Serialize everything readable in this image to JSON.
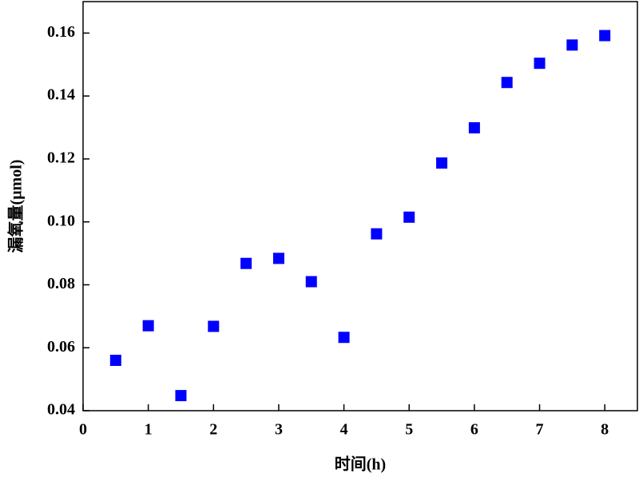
{
  "chart_data": {
    "type": "scatter",
    "x_label": "时间(h)",
    "y_label": "漏氧量(μmol)",
    "x": [
      0.5,
      1,
      1.5,
      2,
      2.5,
      3,
      3.5,
      4,
      4.5,
      5,
      5.5,
      6,
      6.5,
      7,
      7.5,
      8
    ],
    "values": [
      0.056,
      0.067,
      0.0448,
      0.0668,
      0.0868,
      0.0884,
      0.081,
      0.0633,
      0.0962,
      0.1015,
      0.1187,
      0.1299,
      0.1443,
      0.1504,
      0.1562,
      0.1592
    ],
    "color": "#0000ff",
    "xlim": [
      0,
      8.5
    ],
    "xticks": [
      0,
      1,
      2,
      3,
      4,
      5,
      6,
      7,
      8
    ],
    "ylim": [
      0.04,
      0.17
    ],
    "yticks": [
      0.04,
      0.06,
      0.08,
      {
        "value": 0.1,
        "label": "0.10"
      },
      0.12,
      0.14,
      0.16
    ]
  }
}
